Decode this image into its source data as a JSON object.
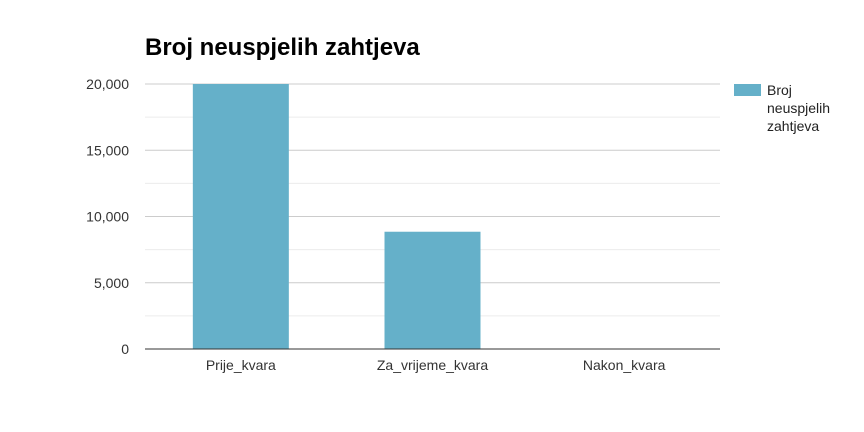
{
  "chart_data": {
    "type": "bar",
    "title": "Broj neuspjelih zahtjeva",
    "categories": [
      "Prije_kvara",
      "Za_vrijeme_kvara",
      "Nakon_kvara"
    ],
    "series": [
      {
        "name": "Broj neuspjelih zahtjeva",
        "values": [
          20000,
          8850,
          0
        ],
        "color": "#65b0c9"
      }
    ],
    "y_ticks": [
      "0",
      "5,000",
      "10,000",
      "15,000",
      "20,000"
    ],
    "ylim": [
      0,
      20000
    ],
    "grid": true,
    "legend": {
      "placement": "right",
      "lines": [
        "Broj",
        "neuspjelih",
        "zahtjeva"
      ]
    }
  }
}
